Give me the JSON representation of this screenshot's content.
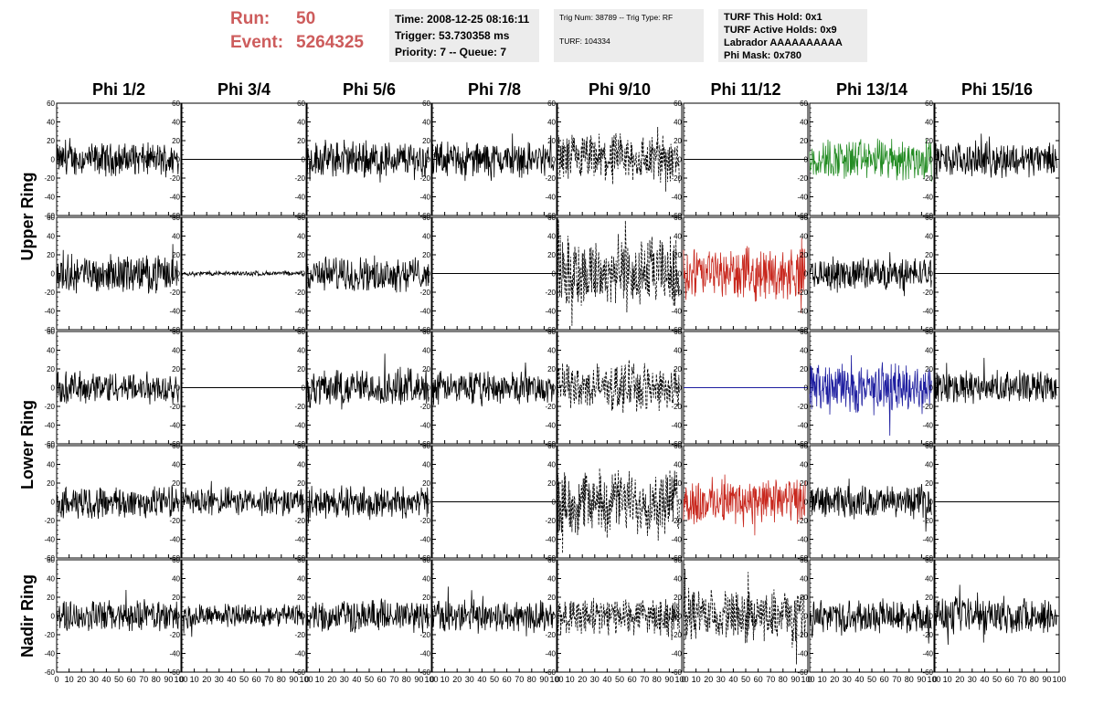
{
  "header": {
    "run_label": "Run:",
    "run_value": "50",
    "event_label": "Event:",
    "event_value": "5264325",
    "time": "Time: 2008-12-25 08:16:11",
    "trigger": "Trigger: 53.730358 ms",
    "priority": "Priority: 7 -- Queue: 7",
    "trig_num": "Trig Num: 38789 -- Trig Type: RF",
    "turf": "TURF: 104334",
    "turf_this_hold": "TURF This Hold: 0x1",
    "turf_active_holds": "TURF Active Holds: 0x9",
    "labrador": "Labrador AAAAAAAAAA",
    "phi_mask": "Phi Mask: 0x780"
  },
  "chart_data": {
    "type": "line",
    "columns": [
      "Phi 1/2",
      "Phi 3/4",
      "Phi 5/6",
      "Phi 7/8",
      "Phi 9/10",
      "Phi 11/12",
      "Phi 13/14",
      "Phi 15/16"
    ],
    "row_labels": [
      {
        "label": "Upper Ring",
        "rows": [
          0,
          1
        ]
      },
      {
        "label": "Lower Ring",
        "rows": [
          2,
          3
        ]
      },
      {
        "label": "Nadir Ring",
        "rows": [
          4
        ]
      }
    ],
    "xlim": [
      0,
      100
    ],
    "ylim": [
      -60,
      60
    ],
    "x_ticks": [
      0,
      10,
      20,
      30,
      40,
      50,
      60,
      70,
      80,
      90,
      100
    ],
    "y_ticks": [
      -60,
      -40,
      -20,
      0,
      20,
      40,
      60
    ],
    "colors": {
      "normal": "#000000",
      "green": "#228b22",
      "red": "#c8281e",
      "blue": "#1e1ea0"
    },
    "panels": [
      [
        {
          "style": "solid",
          "color": "normal",
          "amp": 14
        },
        {
          "style": "flat",
          "color": "normal",
          "amp": 0
        },
        {
          "style": "solid",
          "color": "normal",
          "amp": 16
        },
        {
          "style": "solid",
          "color": "normal",
          "amp": 15
        },
        {
          "style": "dashed",
          "color": "normal",
          "amp": 22
        },
        {
          "style": "flat",
          "color": "normal",
          "amp": 0
        },
        {
          "style": "solid",
          "color": "green",
          "amp": 18
        },
        {
          "style": "solid",
          "color": "normal",
          "amp": 15
        }
      ],
      [
        {
          "style": "solid",
          "color": "normal",
          "amp": 16
        },
        {
          "style": "solid",
          "color": "normal",
          "amp": 2
        },
        {
          "style": "solid",
          "color": "normal",
          "amp": 15
        },
        {
          "style": "flat",
          "color": "normal",
          "amp": 0
        },
        {
          "style": "dashed",
          "color": "normal",
          "amp": 32
        },
        {
          "style": "solid",
          "color": "red",
          "amp": 22
        },
        {
          "style": "solid",
          "color": "normal",
          "amp": 14
        },
        {
          "style": "flat",
          "color": "normal",
          "amp": 0
        }
      ],
      [
        {
          "style": "solid",
          "color": "normal",
          "amp": 14
        },
        {
          "style": "flat",
          "color": "normal",
          "amp": 0
        },
        {
          "style": "solid",
          "color": "normal",
          "amp": 16
        },
        {
          "style": "solid",
          "color": "normal",
          "amp": 14
        },
        {
          "style": "dashed",
          "color": "normal",
          "amp": 20
        },
        {
          "style": "flat",
          "color": "blue",
          "amp": 0
        },
        {
          "style": "solid",
          "color": "blue",
          "amp": 22
        },
        {
          "style": "solid",
          "color": "normal",
          "amp": 14
        }
      ],
      [
        {
          "style": "solid",
          "color": "normal",
          "amp": 14
        },
        {
          "style": "solid",
          "color": "normal",
          "amp": 12
        },
        {
          "style": "solid",
          "color": "normal",
          "amp": 14
        },
        {
          "style": "flat",
          "color": "normal",
          "amp": 0
        },
        {
          "style": "dashed",
          "color": "normal",
          "amp": 28
        },
        {
          "style": "solid",
          "color": "red",
          "amp": 20
        },
        {
          "style": "solid",
          "color": "normal",
          "amp": 14
        },
        {
          "style": "flat",
          "color": "normal",
          "amp": 0
        }
      ],
      [
        {
          "style": "solid",
          "color": "normal",
          "amp": 14
        },
        {
          "style": "solid",
          "color": "normal",
          "amp": 10
        },
        {
          "style": "solid",
          "color": "normal",
          "amp": 14
        },
        {
          "style": "solid",
          "color": "normal",
          "amp": 14
        },
        {
          "style": "dashed",
          "color": "normal",
          "amp": 16
        },
        {
          "style": "dashed",
          "color": "normal",
          "amp": 22
        },
        {
          "style": "solid",
          "color": "normal",
          "amp": 14
        },
        {
          "style": "solid",
          "color": "normal",
          "amp": 16
        }
      ]
    ]
  }
}
